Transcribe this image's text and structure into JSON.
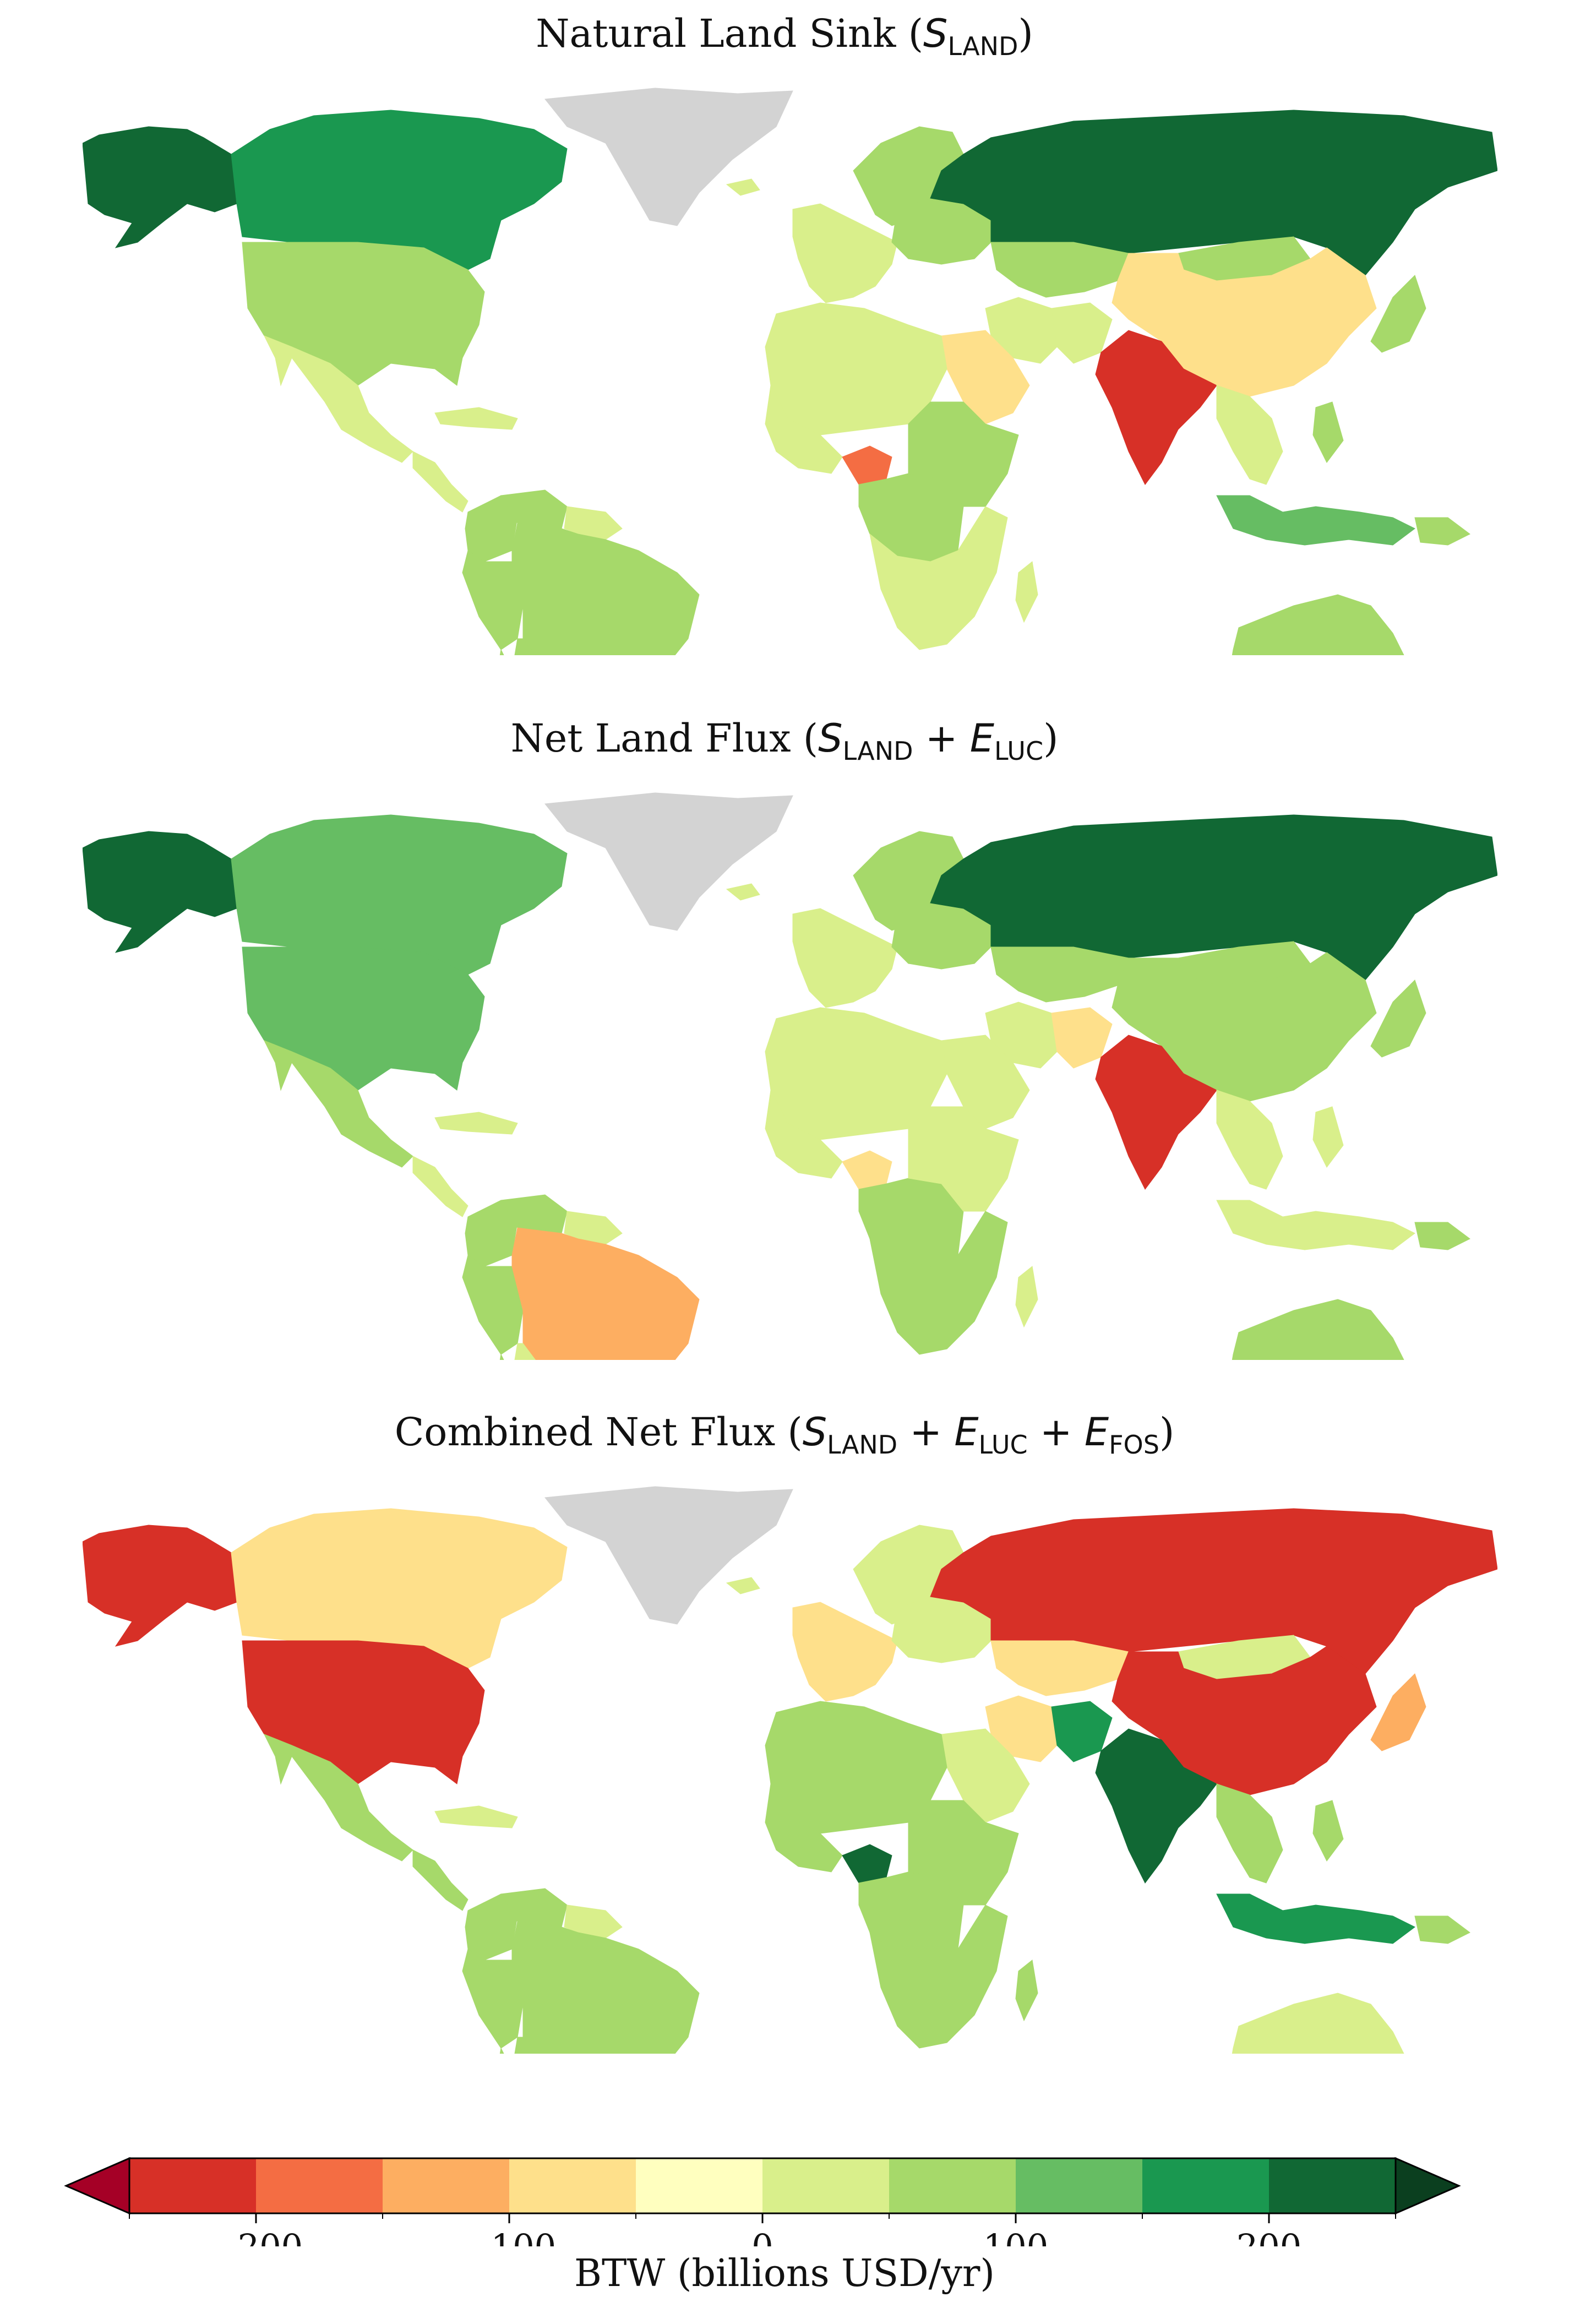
{
  "panels": [
    {
      "id": "natural-land-sink",
      "title_prefix": "Natural Land Sink (",
      "title_parts": [
        {
          "sym": "S",
          "sub": "LAND"
        }
      ],
      "title_suffix": ")",
      "values": {
        "alaska": 250,
        "canada": 150,
        "usa": 75,
        "mexico": 25,
        "centralamerica": 25,
        "caribbean": 25,
        "colombia": 75,
        "venezuela": 50,
        "guianas": 25,
        "brazil": 75,
        "peru": 75,
        "bolivia": 50,
        "argentina": 50,
        "chile": 50,
        "uruguay": 50,
        "greenland": null,
        "iceland": 25,
        "scandinavia": 50,
        "westeurope": 25,
        "easteurope": 50,
        "russia": 250,
        "kazakhstan": 50,
        "mongolia": 50,
        "china": -75,
        "iran": 25,
        "saudi": -75,
        "india": -250,
        "pakistan": 25,
        "southeastasia": 25,
        "indonesia": 125,
        "png": 75,
        "japan": 50,
        "philippines": 50,
        "nafrica": 25,
        "westafrica": 25,
        "nigeria": -175,
        "centralafrica": 75,
        "eastafrica": 50,
        "southernafrica": 25,
        "madagascar": 25,
        "australia": 50,
        "newzealand": 50
      }
    },
    {
      "id": "net-land-flux",
      "title_prefix": "Net Land Flux (",
      "title_parts": [
        {
          "sym": "S",
          "sub": "LAND"
        },
        {
          "op": "+"
        },
        {
          "sym": "E",
          "sub": "LUC"
        }
      ],
      "title_suffix": ")",
      "values": {
        "alaska": 250,
        "canada": 125,
        "usa": 125,
        "mexico": 50,
        "centralamerica": 25,
        "caribbean": 25,
        "colombia": 50,
        "venezuela": 50,
        "guianas": 25,
        "brazil": -125,
        "peru": 50,
        "bolivia": 25,
        "argentina": 50,
        "chile": 50,
        "uruguay": 50,
        "greenland": null,
        "iceland": 25,
        "scandinavia": 50,
        "westeurope": 25,
        "easteurope": 50,
        "russia": 225,
        "kazakhstan": 50,
        "mongolia": 50,
        "china": 50,
        "iran": 25,
        "saudi": 25,
        "india": -250,
        "pakistan": -75,
        "southeastasia": 25,
        "indonesia": 25,
        "png": 75,
        "japan": 50,
        "philippines": 25,
        "nafrica": 25,
        "westafrica": 25,
        "nigeria": -75,
        "centralafrica": 50,
        "eastafrica": 25,
        "southernafrica": 50,
        "madagascar": 25,
        "australia": 50,
        "newzealand": 50
      }
    },
    {
      "id": "combined-net-flux",
      "title_prefix": "Combined Net Flux (",
      "title_parts": [
        {
          "sym": "S",
          "sub": "LAND"
        },
        {
          "op": "+"
        },
        {
          "sym": "E",
          "sub": "LUC"
        },
        {
          "op": "+"
        },
        {
          "sym": "E",
          "sub": "FOS"
        }
      ],
      "title_suffix": ")",
      "values": {
        "alaska": -250,
        "canada": -75,
        "usa": -250,
        "mexico": 75,
        "centralamerica": 50,
        "caribbean": 25,
        "colombia": 50,
        "venezuela": 50,
        "guianas": 25,
        "brazil": 50,
        "peru": 50,
        "bolivia": 50,
        "argentina": 25,
        "chile": 50,
        "uruguay": 50,
        "greenland": null,
        "iceland": 25,
        "scandinavia": 25,
        "westeurope": -75,
        "easteurope": 25,
        "russia": -250,
        "kazakhstan": -75,
        "mongolia": 25,
        "china": -250,
        "iran": -75,
        "saudi": 25,
        "india": 250,
        "pakistan": 175,
        "southeastasia": 75,
        "indonesia": 175,
        "png": 75,
        "japan": -125,
        "philippines": 75,
        "nafrica": 50,
        "westafrica": 50,
        "nigeria": 250,
        "centralafrica": 75,
        "eastafrica": 75,
        "southernafrica": 50,
        "madagascar": 50,
        "australia": 25,
        "newzealand": 50
      }
    }
  ],
  "colorbar": {
    "label": "BTW (billions USD/yr)",
    "vmin": -250,
    "vmax": 250,
    "ticks": [
      -200,
      -100,
      0,
      100,
      200
    ],
    "tick_labels": [
      "−200",
      "−100",
      "0",
      "100",
      "200"
    ],
    "colors": [
      "#d73027",
      "#f46d43",
      "#fdae61",
      "#fee08b",
      "#ffffbf",
      "#d9ef8b",
      "#a6d96a",
      "#66bd63",
      "#1a9850",
      "#116834"
    ],
    "under_color": "#a50026",
    "over_color": "#0b3f1f",
    "extend": "both",
    "nodata_color": "#d3d3d3"
  }
}
